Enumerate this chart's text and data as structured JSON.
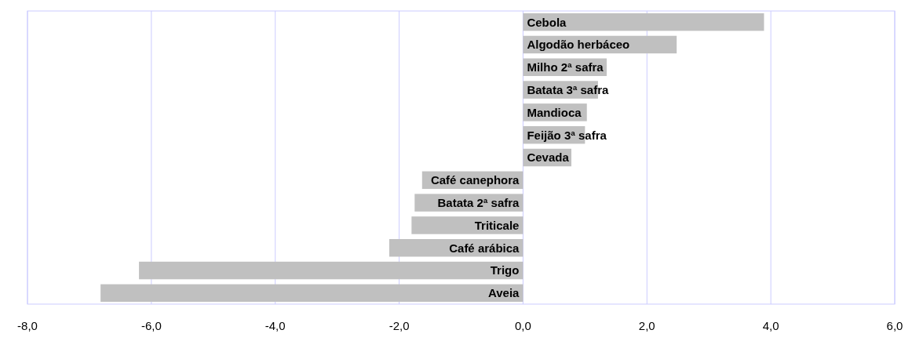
{
  "chart_data": {
    "type": "bar",
    "orientation": "horizontal",
    "categories": [
      "Cebola",
      "Algodão herbáceo",
      "Milho 2ª safra",
      "Batata 3ª safra",
      "Mandioca",
      "Feijão 3ª safra",
      "Cevada",
      "Café canephora",
      "Batata 2ª safra",
      "Triticale",
      "Café arábica",
      "Trigo",
      "Aveia"
    ],
    "values": [
      3.89,
      2.48,
      1.35,
      1.21,
      1.03,
      1.0,
      0.78,
      -1.63,
      -1.75,
      -1.8,
      -2.16,
      -6.2,
      -6.82
    ],
    "color": "#c0c0c0",
    "xlim": [
      -8,
      6
    ],
    "xticks": [
      {
        "value": -8,
        "label": "-8,0"
      },
      {
        "value": -6,
        "label": "-6,0"
      },
      {
        "value": -4,
        "label": "-4,0"
      },
      {
        "value": -2,
        "label": "-2,0"
      },
      {
        "value": 0,
        "label": "0,0"
      },
      {
        "value": 2,
        "label": "2,0"
      },
      {
        "value": 4,
        "label": "4,0"
      },
      {
        "value": 6,
        "label": "6,0"
      }
    ],
    "grid": "x"
  }
}
